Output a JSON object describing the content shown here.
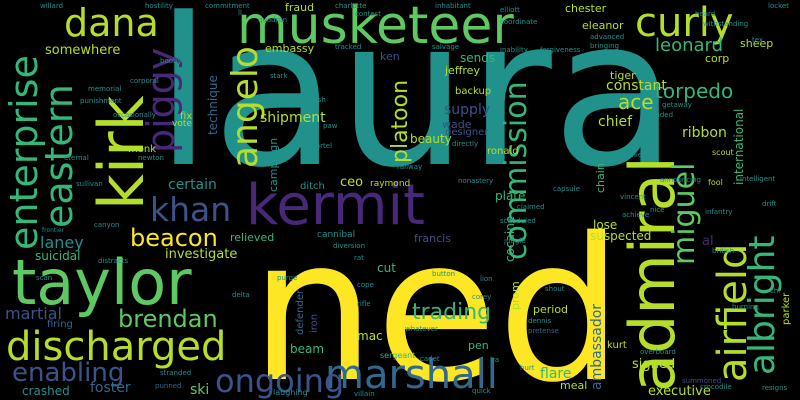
{
  "background": "#000000",
  "palette": {
    "yellow": "#fde725",
    "lime": "#b5de2b",
    "green": "#5ec962",
    "teal_green": "#35b779",
    "teal": "#21918c",
    "blue": "#31688e",
    "indigo": "#3b528b",
    "purple": "#482878",
    "dark_purple": "#440154"
  },
  "words": [
    {
      "text": "laura",
      "color": "#21918c"
    },
    {
      "text": "ned",
      "color": "#fde725"
    },
    {
      "text": "musketeer",
      "color": "#5ec962"
    },
    {
      "text": "kermit",
      "color": "#482878"
    },
    {
      "text": "kirk",
      "color": "#b5de2b"
    },
    {
      "text": "taylor",
      "color": "#5ec962"
    },
    {
      "text": "admiral",
      "color": "#b5de2b"
    },
    {
      "text": "discharged",
      "color": "#b5de2b"
    },
    {
      "text": "marshall",
      "color": "#31688e"
    },
    {
      "text": "dana",
      "color": "#b5de2b"
    },
    {
      "text": "curly",
      "color": "#b5de2b"
    },
    {
      "text": "enterprise",
      "color": "#35b779"
    },
    {
      "text": "eastern",
      "color": "#35b779"
    },
    {
      "text": "piggy",
      "color": "#482878"
    },
    {
      "text": "angelo",
      "color": "#b5de2b"
    },
    {
      "text": "airfield",
      "color": "#b5de2b"
    },
    {
      "text": "albright",
      "color": "#35b779"
    },
    {
      "text": "commission",
      "color": "#35b779"
    },
    {
      "text": "khan",
      "color": "#3b528b"
    },
    {
      "text": "ongoing",
      "color": "#3b528b"
    },
    {
      "text": "enabling",
      "color": "#3b528b"
    },
    {
      "text": "beacon",
      "color": "#fde725"
    },
    {
      "text": "brendan",
      "color": "#5ec962"
    },
    {
      "text": "miguel",
      "color": "#5ec962"
    },
    {
      "text": "torpedo",
      "color": "#35b779"
    },
    {
      "text": "leonard",
      "color": "#35b779"
    },
    {
      "text": "platoon",
      "color": "#b5de2b"
    },
    {
      "text": "ace",
      "color": "#b5de2b"
    },
    {
      "text": "trading",
      "color": "#35b779"
    },
    {
      "text": "laney",
      "color": "#21918c"
    },
    {
      "text": "martial",
      "color": "#3b528b"
    },
    {
      "text": "somewhere",
      "color": "#b5de2b"
    },
    {
      "text": "certain",
      "color": "#21918c"
    },
    {
      "text": "shipment",
      "color": "#b5de2b"
    },
    {
      "text": "investigate",
      "color": "#b5de2b"
    },
    {
      "text": "constant",
      "color": "#b5de2b"
    },
    {
      "text": "supply",
      "color": "#3b528b"
    },
    {
      "text": "chief",
      "color": "#b5de2b"
    },
    {
      "text": "ribbon",
      "color": "#b5de2b"
    },
    {
      "text": "signed",
      "color": "#b5de2b"
    },
    {
      "text": "executive",
      "color": "#b5de2b"
    },
    {
      "text": "flare",
      "color": "#35b779"
    },
    {
      "text": "foster",
      "color": "#31688e"
    },
    {
      "text": "crashed",
      "color": "#21918c"
    },
    {
      "text": "ski",
      "color": "#5ec962"
    },
    {
      "text": "ambassador",
      "color": "#31688e"
    },
    {
      "text": "international",
      "color": "#35b779"
    },
    {
      "text": "technique",
      "color": "#31688e"
    },
    {
      "text": "campaign",
      "color": "#21918c"
    },
    {
      "text": "beauty",
      "color": "#b5de2b"
    },
    {
      "text": "ceo",
      "color": "#b5de2b"
    },
    {
      "text": "plate",
      "color": "#35b779"
    },
    {
      "text": "cocaine",
      "color": "#35b779"
    },
    {
      "text": "cut",
      "color": "#35b779"
    },
    {
      "text": "lose",
      "color": "#b5de2b"
    },
    {
      "text": "suspected",
      "color": "#b5de2b"
    },
    {
      "text": "relieved",
      "color": "#35b779"
    },
    {
      "text": "francis",
      "color": "#3b528b"
    },
    {
      "text": "fraud",
      "color": "#b5de2b"
    },
    {
      "text": "embassy",
      "color": "#b5de2b"
    },
    {
      "text": "ken",
      "color": "#3b528b"
    },
    {
      "text": "sends",
      "color": "#35b779"
    },
    {
      "text": "jeffrey",
      "color": "#b5de2b"
    },
    {
      "text": "backup",
      "color": "#b5de2b"
    },
    {
      "text": "tiger",
      "color": "#b5de2b"
    },
    {
      "text": "corp",
      "color": "#b5de2b"
    },
    {
      "text": "sheep",
      "color": "#b5de2b"
    },
    {
      "text": "chester",
      "color": "#b5de2b"
    },
    {
      "text": "eleanor",
      "color": "#b5de2b"
    },
    {
      "text": "wade",
      "color": "#3b528b"
    },
    {
      "text": "designer",
      "color": "#3b528b"
    },
    {
      "text": "ronald",
      "color": "#b5de2b"
    },
    {
      "text": "mac",
      "color": "#b5de2b"
    },
    {
      "text": "beam",
      "color": "#35b779"
    },
    {
      "text": "suicidal",
      "color": "#35b779"
    },
    {
      "text": "firing",
      "color": "#31688e"
    },
    {
      "text": "monk",
      "color": "#b5de2b"
    },
    {
      "text": "chain",
      "color": "#35b779"
    },
    {
      "text": "period",
      "color": "#b5de2b"
    },
    {
      "text": "prom",
      "color": "#b5de2b"
    },
    {
      "text": "kurt",
      "color": "#b5de2b"
    },
    {
      "text": "pen",
      "color": "#35b779"
    },
    {
      "text": "meal",
      "color": "#b5de2b"
    },
    {
      "text": "defender",
      "color": "#31688e"
    },
    {
      "text": "iron",
      "color": "#3b528b"
    },
    {
      "text": "ditch",
      "color": "#21918c"
    },
    {
      "text": "raymond",
      "color": "#b5de2b"
    },
    {
      "text": "al",
      "color": "#482878"
    },
    {
      "text": "fix",
      "color": "#b5de2b"
    },
    {
      "text": "vote",
      "color": "#b5de2b"
    },
    {
      "text": "parker",
      "color": "#b5de2b"
    },
    {
      "text": "scout",
      "color": "#b5de2b"
    },
    {
      "text": "fool",
      "color": "#b5de2b"
    },
    {
      "text": "drift",
      "color": "#21918c"
    },
    {
      "text": "laughing",
      "color": "#21918c"
    },
    {
      "text": "summoned",
      "color": "#3b528b"
    },
    {
      "text": "resigns",
      "color": "#21918c"
    },
    {
      "text": "stranded",
      "color": "#21918c"
    },
    {
      "text": "sergeant",
      "color": "#35b779"
    },
    {
      "text": "cadet",
      "color": "#21918c"
    },
    {
      "text": "pretense",
      "color": "#31688e"
    },
    {
      "text": "quick",
      "color": "#21918c"
    },
    {
      "text": "villain",
      "color": "#21918c"
    },
    {
      "text": "punned",
      "color": "#31688e"
    },
    {
      "text": "overboard",
      "color": "#21918c"
    },
    {
      "text": "frontier",
      "color": "#21918c"
    },
    {
      "text": "distracts",
      "color": "#21918c"
    },
    {
      "text": "purge",
      "color": "#21918c"
    },
    {
      "text": "delta",
      "color": "#21918c"
    },
    {
      "text": "cannibal",
      "color": "#21918c"
    },
    {
      "text": "diversion",
      "color": "#21918c"
    },
    {
      "text": "dennis",
      "color": "#21918c"
    },
    {
      "text": "crocodile",
      "color": "#21918c"
    },
    {
      "text": "button",
      "color": "#21918c"
    },
    {
      "text": "cope",
      "color": "#21918c"
    },
    {
      "text": "shout",
      "color": "#21918c"
    },
    {
      "text": "lion",
      "color": "#21918c"
    },
    {
      "text": "corey",
      "color": "#21918c"
    },
    {
      "text": "scheduled",
      "color": "#21918c"
    },
    {
      "text": "jungle",
      "color": "#21918c"
    },
    {
      "text": "whatever",
      "color": "#21918c"
    },
    {
      "text": "rifle",
      "color": "#21918c"
    },
    {
      "text": "cartel",
      "color": "#21918c"
    },
    {
      "text": "directly",
      "color": "#21918c"
    },
    {
      "text": "railway",
      "color": "#21918c"
    },
    {
      "text": "nonastery",
      "color": "#21918c"
    },
    {
      "text": "claimed",
      "color": "#21918c"
    },
    {
      "text": "capsule",
      "color": "#21918c"
    },
    {
      "text": "vincent",
      "color": "#21918c"
    },
    {
      "text": "infantry",
      "color": "#21918c"
    },
    {
      "text": "british",
      "color": "#21918c"
    },
    {
      "text": "burning",
      "color": "#21918c"
    },
    {
      "text": "announcing",
      "color": "#21918c"
    },
    {
      "text": "ronnie",
      "color": "#21918c"
    },
    {
      "text": "extended",
      "color": "#21918c"
    },
    {
      "text": "picked",
      "color": "#21918c"
    },
    {
      "text": "getaway",
      "color": "#21918c"
    },
    {
      "text": "stark",
      "color": "#21918c"
    },
    {
      "text": "wish",
      "color": "#21918c"
    },
    {
      "text": "paw",
      "color": "#21918c"
    },
    {
      "text": "tracked",
      "color": "#21918c"
    },
    {
      "text": "salvage",
      "color": "#21918c"
    },
    {
      "text": "inability",
      "color": "#21918c"
    },
    {
      "text": "forgiveness",
      "color": "#21918c"
    },
    {
      "text": "advanced",
      "color": "#21918c"
    },
    {
      "text": "bringing",
      "color": "#21918c"
    },
    {
      "text": "inhabitant",
      "color": "#21918c"
    },
    {
      "text": "elliott",
      "color": "#21918c"
    },
    {
      "text": "coordinate",
      "color": "#21918c"
    },
    {
      "text": "heard",
      "color": "#21918c"
    },
    {
      "text": "withstanding",
      "color": "#21918c"
    },
    {
      "text": "locket",
      "color": "#21918c"
    },
    {
      "text": "tex",
      "color": "#21918c"
    },
    {
      "text": "willard",
      "color": "#21918c"
    },
    {
      "text": "hostility",
      "color": "#21918c"
    },
    {
      "text": "charlotte",
      "color": "#21918c"
    },
    {
      "text": "commitment",
      "color": "#21918c"
    },
    {
      "text": "contest",
      "color": "#21918c"
    },
    {
      "text": "booby",
      "color": "#21918c"
    },
    {
      "text": "corporal",
      "color": "#21918c"
    },
    {
      "text": "punishment",
      "color": "#21918c"
    },
    {
      "text": "occasionally",
      "color": "#21918c"
    },
    {
      "text": "memorial",
      "color": "#21918c"
    },
    {
      "text": "elephant",
      "color": "#21918c"
    },
    {
      "text": "quadron",
      "color": "#21918c"
    },
    {
      "text": "eternal",
      "color": "#21918c"
    },
    {
      "text": "sullivan",
      "color": "#21918c"
    },
    {
      "text": "newton",
      "color": "#21918c"
    },
    {
      "text": "canyon",
      "color": "#21918c"
    },
    {
      "text": "achieve",
      "color": "#21918c"
    },
    {
      "text": "intelligent",
      "color": "#21918c"
    },
    {
      "text": "nice",
      "color": "#21918c"
    },
    {
      "text": "ira",
      "color": "#21918c"
    },
    {
      "text": "hurt",
      "color": "#21918c"
    },
    {
      "text": "rat",
      "color": "#21918c"
    },
    {
      "text": "scan",
      "color": "#21918c"
    },
    {
      "text": "chi",
      "color": "#21918c"
    },
    {
      "text": "ll",
      "color": "#21918c"
    }
  ]
}
